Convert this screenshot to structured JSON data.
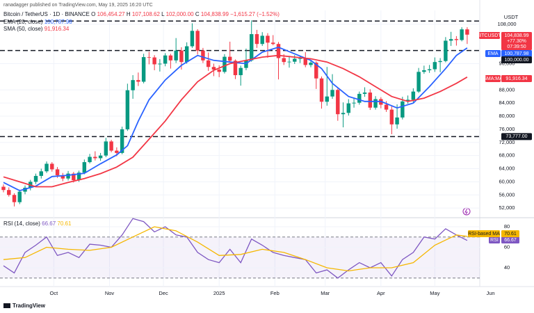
{
  "chart_data": {
    "type": "candlestick",
    "publisher": "ranadagger published on TradingView.com, May 19, 2025 16:20 UTC",
    "title": "Bitcoin / TetherUS · 1D · BINANCE",
    "ohlc_header": [
      {
        "key": "O",
        "value": "106,454.27"
      },
      {
        "key": "H",
        "value": "107,108.62"
      },
      {
        "key": "L",
        "value": "102,000.00"
      },
      {
        "key": "C",
        "value": "104,838.99"
      }
    ],
    "change": "−1,615.27 (−1.52%)",
    "currency": "USDT",
    "colors": {
      "up": "#089981",
      "down": "#f23645"
    },
    "x": [
      0,
      3,
      6,
      9,
      12,
      15,
      18,
      21,
      24,
      27,
      30,
      33,
      36,
      39,
      42,
      45,
      48,
      51,
      54,
      57,
      60,
      63,
      66,
      69,
      72,
      75,
      78,
      81,
      84,
      87,
      90,
      93,
      96,
      99,
      102,
      105,
      108,
      111,
      114,
      117,
      120,
      123,
      126,
      129,
      132,
      135,
      138,
      141,
      144,
      147,
      150,
      153,
      156,
      159,
      162,
      165,
      168,
      171,
      174,
      177,
      180,
      183,
      186,
      189,
      192,
      195,
      198,
      201,
      204,
      207,
      210,
      213,
      216,
      219,
      222,
      225,
      228,
      231,
      234,
      237,
      240,
      243,
      246,
      249,
      252,
      255,
      258
    ],
    "open": [
      58500,
      57500,
      56000,
      53800,
      57000,
      58200,
      60000,
      61800,
      63200,
      65500,
      63800,
      62000,
      61000,
      62500,
      60500,
      62800,
      66000,
      67600,
      67200,
      68000,
      72300,
      69500,
      68800,
      76000,
      87900,
      91000,
      90500,
      98000,
      97900,
      95800,
      96000,
      98500,
      97000,
      100000,
      96500,
      101300,
      106000,
      100000,
      97000,
      95000,
      94200,
      93500,
      98100,
      96900,
      92500,
      94700,
      97000,
      105000,
      102000,
      104500,
      102400,
      102000,
      97700,
      96500,
      96600,
      97500,
      97600,
      95600,
      96300,
      91500,
      84400,
      86000,
      88000,
      80600,
      81000,
      83900,
      84100,
      86800,
      87200,
      82600,
      85200,
      83500,
      82000,
      77500,
      79600,
      84500,
      85000,
      87500,
      93500,
      94000,
      94300,
      96500,
      96800,
      103000,
      103500,
      103200,
      106454.27
    ],
    "high": [
      59200,
      58300,
      56500,
      57600,
      58900,
      60600,
      62500,
      64000,
      66200,
      66000,
      64500,
      62700,
      63300,
      63000,
      63400,
      66800,
      68500,
      69300,
      68800,
      73400,
      72800,
      70500,
      76800,
      89900,
      92500,
      93300,
      99000,
      99600,
      98600,
      97400,
      99200,
      99000,
      103800,
      101000,
      102500,
      108300,
      106500,
      100800,
      99400,
      96000,
      95500,
      98900,
      102700,
      97300,
      95400,
      100600,
      109200,
      106300,
      105600,
      105300,
      104700,
      102600,
      98900,
      98400,
      98600,
      98300,
      99500,
      97000,
      96700,
      92100,
      95000,
      92800,
      88400,
      84200,
      85200,
      85400,
      87500,
      88800,
      88200,
      86100,
      85800,
      84600,
      83000,
      83600,
      85900,
      86300,
      88500,
      94700,
      95400,
      95600,
      97900,
      97700,
      104100,
      105700,
      104400,
      107100,
      107108.62
    ],
    "low": [
      56800,
      55500,
      52500,
      53200,
      56200,
      57400,
      59300,
      61000,
      62700,
      63100,
      61200,
      60200,
      60400,
      59800,
      60000,
      62300,
      65600,
      66500,
      66400,
      67500,
      69000,
      67800,
      68400,
      75500,
      85300,
      89200,
      90000,
      95800,
      94000,
      93600,
      95200,
      94500,
      96200,
      94200,
      96000,
      100800,
      98800,
      96200,
      93800,
      92200,
      91900,
      93000,
      96300,
      91300,
      89300,
      94000,
      96600,
      100800,
      101400,
      97800,
      101600,
      91200,
      95600,
      94800,
      95900,
      96200,
      94900,
      94900,
      88300,
      82300,
      83200,
      85300,
      78600,
      76600,
      80200,
      82600,
      83500,
      85900,
      81900,
      82000,
      82400,
      81300,
      74500,
      76200,
      79000,
      83800,
      84200,
      87100,
      92900,
      93200,
      93500,
      93400,
      96400,
      101400,
      101500,
      102800,
      102000
    ],
    "close": [
      57500,
      56000,
      53800,
      57000,
      58200,
      60000,
      61800,
      63200,
      65500,
      63800,
      62000,
      61000,
      62500,
      60500,
      62800,
      66000,
      67600,
      67200,
      68000,
      72300,
      69500,
      68800,
      76000,
      87900,
      91000,
      90500,
      98000,
      97900,
      95800,
      96000,
      98500,
      97000,
      100000,
      96500,
      101300,
      106000,
      100000,
      97000,
      95000,
      94200,
      93500,
      98100,
      96900,
      92500,
      94700,
      97000,
      105000,
      102000,
      104500,
      102400,
      102000,
      97700,
      96500,
      96600,
      97500,
      97600,
      95600,
      96300,
      91500,
      84400,
      86000,
      88000,
      80600,
      81000,
      83900,
      84100,
      86800,
      87200,
      82600,
      85200,
      83500,
      82000,
      77500,
      79600,
      84500,
      85000,
      87500,
      93500,
      94000,
      94300,
      96500,
      96800,
      103000,
      103500,
      103200,
      106454.27,
      104838.99
    ],
    "xlim": [
      0,
      265
    ],
    "xticks": [
      {
        "value": 28,
        "label": "Oct"
      },
      {
        "value": 59,
        "label": "Nov"
      },
      {
        "value": 89,
        "label": "Dec"
      },
      {
        "value": 120,
        "label": "2025"
      },
      {
        "value": 151,
        "label": "Feb"
      },
      {
        "value": 179,
        "label": "Mar"
      },
      {
        "value": 210,
        "label": "Apr"
      },
      {
        "value": 240,
        "label": "May"
      },
      {
        "value": 271,
        "label": "Jun"
      }
    ],
    "ylim": [
      49700,
      110100
    ],
    "yticks": [
      {
        "value": 52000,
        "label": "52,000"
      },
      {
        "value": 56000,
        "label": "56,000"
      },
      {
        "value": 60000,
        "label": "60,000"
      },
      {
        "value": 64000,
        "label": "64,000"
      },
      {
        "value": 68000,
        "label": "68,000"
      },
      {
        "value": 72000,
        "label": "72,000"
      },
      {
        "value": 76000,
        "label": "76,000"
      },
      {
        "value": 80000,
        "label": "80,000"
      },
      {
        "value": 84000,
        "label": "84,000"
      },
      {
        "value": 88000,
        "label": "88,000"
      },
      {
        "value": 96000,
        "label": "96,000"
      },
      {
        "value": 108000,
        "label": "108,000"
      }
    ],
    "grid": true,
    "levels": [
      109000,
      100000,
      73777
    ],
    "level_labels": [
      null,
      "100,000.00",
      "73,777.00"
    ],
    "price_tag": {
      "symbol": "BTCUSDT",
      "value_label": "104,838.99",
      "change": "+77.30%",
      "countdown": "07:39:50"
    },
    "series": [
      {
        "name": "EMA (20, close)",
        "tag": "EMA",
        "value_label": "100,787.98",
        "color": "#2962ff",
        "x": [
          0,
          9,
          18,
          27,
          36,
          45,
          54,
          63,
          69,
          75,
          81,
          90,
          99,
          108,
          117,
          126,
          135,
          144,
          153,
          162,
          171,
          177,
          183,
          192,
          201,
          210,
          219,
          228,
          237,
          246,
          252,
          258
        ],
        "values": [
          59800,
          57300,
          58700,
          61600,
          62000,
          62600,
          65500,
          68200,
          71000,
          78500,
          85000,
          91000,
          95500,
          98500,
          97000,
          96500,
          96000,
          99500,
          101000,
          99000,
          97000,
          94500,
          90000,
          86000,
          84500,
          84500,
          82500,
          84000,
          89000,
          94500,
          98500,
          100787.98
        ]
      },
      {
        "name": "SMA (50, close)",
        "tag": "SMA:MA",
        "value_label": "91,916.34",
        "color": "#f23645",
        "x": [
          0,
          9,
          18,
          27,
          36,
          45,
          54,
          63,
          72,
          81,
          90,
          99,
          108,
          117,
          126,
          135,
          144,
          153,
          162,
          171,
          180,
          189,
          198,
          207,
          216,
          225,
          234,
          243,
          252,
          258
        ],
        "values": [
          61500,
          60000,
          58500,
          58500,
          59800,
          61000,
          62500,
          64500,
          67500,
          73000,
          78500,
          85000,
          90500,
          94000,
          96000,
          97000,
          98000,
          98500,
          98000,
          97500,
          96500,
          94500,
          92000,
          89000,
          86000,
          84500,
          85500,
          87500,
          90000,
          91916.34
        ]
      }
    ],
    "rsi": {
      "title": "RSI (14, close)",
      "ylim": [
        28.5,
        85.4
      ],
      "yticks": [
        40,
        60,
        80
      ],
      "bands": [
        30,
        70
      ],
      "series": [
        {
          "name": "RSI",
          "value_label": "66.67",
          "color": "#7e57c2",
          "x": [
            0,
            6,
            12,
            18,
            24,
            30,
            36,
            42,
            48,
            54,
            60,
            66,
            72,
            78,
            84,
            90,
            96,
            102,
            108,
            114,
            120,
            126,
            132,
            138,
            144,
            150,
            156,
            162,
            168,
            174,
            180,
            186,
            192,
            198,
            204,
            210,
            216,
            222,
            228,
            234,
            240,
            246,
            252,
            258
          ],
          "values": [
            42,
            35,
            55,
            62,
            70,
            52,
            55,
            50,
            63,
            62,
            60,
            72,
            88,
            85,
            75,
            80,
            72,
            70,
            55,
            48,
            45,
            58,
            45,
            68,
            62,
            55,
            52,
            50,
            48,
            35,
            38,
            30,
            38,
            45,
            40,
            45,
            32,
            48,
            55,
            70,
            68,
            78,
            72,
            66.67
          ]
        },
        {
          "name": "RSI-based MA",
          "value_label": "70.61",
          "color": "#f5b700",
          "x": [
            0,
            12,
            24,
            36,
            48,
            60,
            72,
            84,
            96,
            108,
            120,
            132,
            144,
            156,
            168,
            180,
            192,
            204,
            216,
            228,
            240,
            252,
            258
          ],
          "values": [
            48,
            50,
            60,
            58,
            57,
            60,
            70,
            80,
            76,
            65,
            52,
            53,
            58,
            55,
            48,
            40,
            37,
            40,
            40,
            45,
            62,
            72,
            70.61
          ]
        }
      ]
    },
    "footer": "TradingView"
  }
}
